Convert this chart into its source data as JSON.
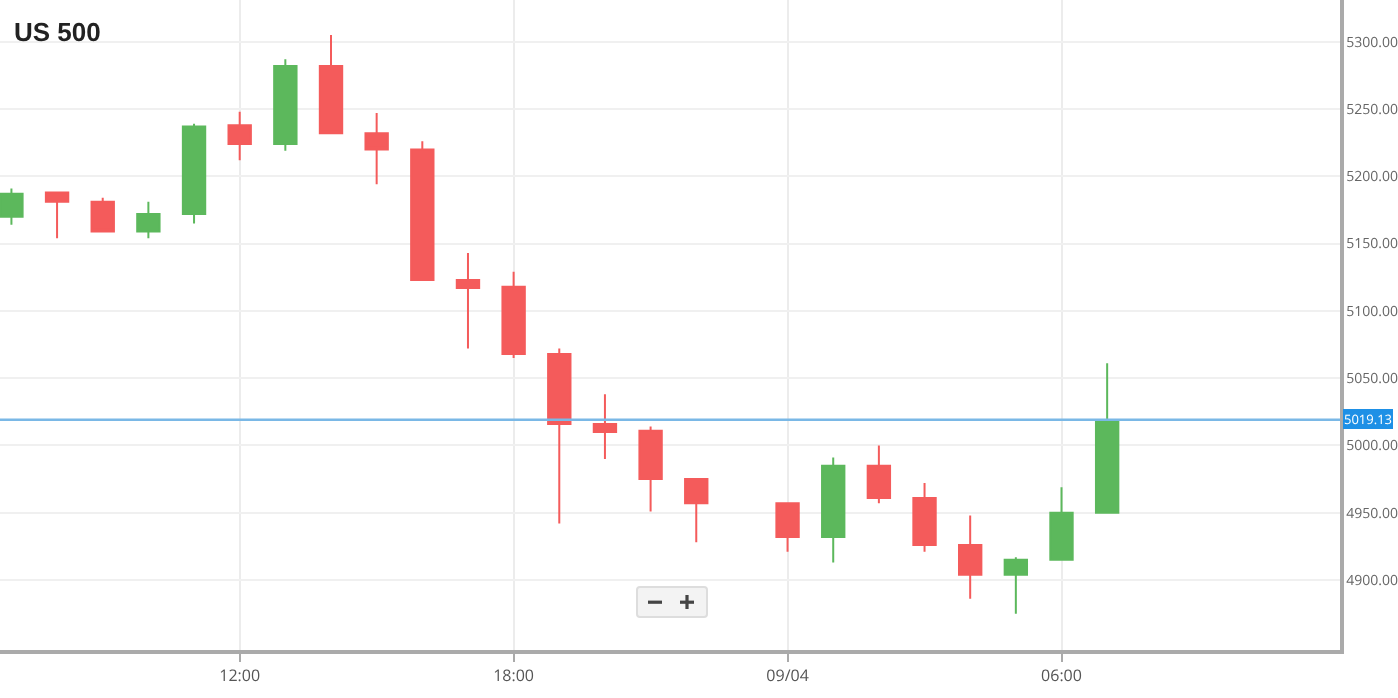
{
  "chart_data": {
    "type": "candlestick",
    "title": "US 500",
    "x": [
      "--04-08T07:00",
      "--04-08T08:00",
      "--04-08T09:00",
      "--04-08T10:00",
      "--04-08T11:00",
      "--04-08T12:00",
      "--04-08T13:00",
      "--04-08T14:00",
      "--04-08T15:00",
      "--04-08T16:00",
      "--04-08T17:00",
      "--04-08T18:00",
      "--04-08T19:00",
      "--04-08T20:00",
      "--04-08T21:00",
      "--04-08T22:00",
      "--04-09T00:00",
      "--04-09T01:00",
      "--04-09T02:00",
      "--04-09T03:00",
      "--04-09T04:00",
      "--04-09T05:00",
      "--04-09T06:00",
      "--04-09T07:00"
    ],
    "ohlc": [
      [
        5170,
        5191,
        5164,
        5187
      ],
      [
        5188,
        5188,
        5154,
        5181
      ],
      [
        5181,
        5184,
        5159,
        5159
      ],
      [
        5159,
        5181,
        5154,
        5172
      ],
      [
        5172,
        5239,
        5165,
        5237
      ],
      [
        5238,
        5248,
        5212,
        5224
      ],
      [
        5224,
        5287,
        5219,
        5282
      ],
      [
        5282,
        5305,
        5232,
        5232
      ],
      [
        5232,
        5247,
        5194,
        5220
      ],
      [
        5220,
        5226,
        5123,
        5123
      ],
      [
        5123,
        5143,
        5072,
        5117
      ],
      [
        5118,
        5129,
        5065,
        5068
      ],
      [
        5068,
        5072,
        4942,
        5016
      ],
      [
        5016,
        5038,
        4990,
        5010
      ],
      [
        5011,
        5014,
        4951,
        4975
      ],
      [
        4975,
        4975,
        4928,
        4957
      ],
      [
        4957,
        4957,
        4921,
        4932
      ],
      [
        4932,
        4991,
        4913,
        4985
      ],
      [
        4985,
        5000,
        4957,
        4961
      ],
      [
        4961,
        4972,
        4921,
        4926
      ],
      [
        4926,
        4948,
        4886,
        4904
      ],
      [
        4904,
        4917,
        4875,
        4915
      ],
      [
        4915,
        4969,
        4915,
        4950
      ],
      [
        4950,
        5061,
        4950,
        5019
      ]
    ],
    "colors": [
      "#5cb85c",
      "#f45b5b",
      "#f45b5b",
      "#5cb85c",
      "#5cb85c",
      "#f45b5b",
      "#5cb85c",
      "#f45b5b",
      "#f45b5b",
      "#f45b5b",
      "#f45b5b",
      "#f45b5b",
      "#f45b5b",
      "#f45b5b",
      "#f45b5b",
      "#f45b5b",
      "#f45b5b",
      "#5cb85c",
      "#f45b5b",
      "#f45b5b",
      "#f45b5b",
      "#5cb85c",
      "#5cb85c",
      "#5cb85c"
    ],
    "xlim": [
      "--04-08T06:45",
      "--04-09T12:06"
    ],
    "xticks": [
      {
        "value": "--04-08T12:00",
        "label": "12:00"
      },
      {
        "value": "--04-08T18:00",
        "label": "18:00"
      },
      {
        "value": "--04-09T00:00",
        "label": "09/04"
      },
      {
        "value": "--04-09T06:00",
        "label": "06:00"
      }
    ],
    "ylim": [
      4848,
      5331
    ],
    "yticks": [
      {
        "value": 4900,
        "label": "4900.00"
      },
      {
        "value": 4950,
        "label": "4950.00"
      },
      {
        "value": 5000,
        "label": "5000.00"
      },
      {
        "value": 5050,
        "label": "5050.00"
      },
      {
        "value": 5100,
        "label": "5100.00"
      },
      {
        "value": 5150,
        "label": "5150.00"
      },
      {
        "value": 5200,
        "label": "5200.00"
      },
      {
        "value": 5250,
        "label": "5250.00"
      },
      {
        "value": 5300,
        "label": "5300.00"
      }
    ],
    "ref_lines": [
      {
        "axis": "y",
        "value": 5019.13,
        "label": "5019.13",
        "color": "#7ab8e6"
      }
    ],
    "grid": true
  }
}
